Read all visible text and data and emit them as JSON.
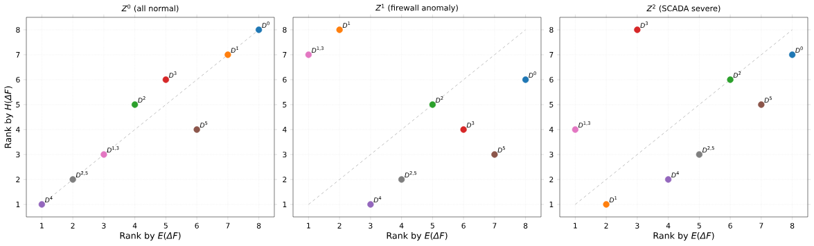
{
  "chart_data": [
    {
      "type": "scatter",
      "title": "*Z*$^{0}$ (all normal)",
      "xlabel": "Rank by *E*(*ΔF*)",
      "ylabel": "Rank by *H*(*ΔF*)",
      "xlim": [
        0.5,
        8.5
      ],
      "ylim": [
        0.5,
        8.5
      ],
      "xticks": [
        1,
        2,
        3,
        4,
        5,
        6,
        7,
        8
      ],
      "yticks": [
        1,
        2,
        3,
        4,
        5,
        6,
        7,
        8
      ],
      "grid": true,
      "series": [
        {
          "type": "line",
          "x": [
            1,
            8
          ],
          "values": [
            1,
            8
          ],
          "color": "#b0b0b0",
          "line_style": "dashed",
          "marker": "none"
        },
        {
          "marker": "circle",
          "x": [
            8,
            7,
            4,
            5,
            1,
            6,
            3,
            2
          ],
          "values": [
            8,
            7,
            5,
            6,
            1,
            4,
            3,
            2
          ],
          "colors": [
            "#1f77b4",
            "#ff7f0e",
            "#2ca02c",
            "#d62728",
            "#9467bd",
            "#8c564b",
            "#e377c2",
            "#7f7f7f"
          ]
        }
      ],
      "annotations": [
        {
          "text": "*D*$^{0}$",
          "x": 8,
          "y": 8
        },
        {
          "text": "*D*$^{1}$",
          "x": 7,
          "y": 7
        },
        {
          "text": "*D*$^{2}$",
          "x": 4,
          "y": 5
        },
        {
          "text": "*D*$^{3}$",
          "x": 5,
          "y": 6
        },
        {
          "text": "*D*$^{4}$",
          "x": 1,
          "y": 1
        },
        {
          "text": "*D*$^{5}$",
          "x": 6,
          "y": 4
        },
        {
          "text": "*D*$^{1,3}$",
          "x": 3,
          "y": 3
        },
        {
          "text": "*D*$^{2,5}$",
          "x": 2,
          "y": 2
        }
      ]
    },
    {
      "type": "scatter",
      "title": "*Z*$^{1}$ (firewall anomaly)",
      "xlabel": "Rank by *E*(*ΔF*)",
      "xlim": [
        0.5,
        8.5
      ],
      "ylim": [
        0.5,
        8.5
      ],
      "xticks": [
        1,
        2,
        3,
        4,
        5,
        6,
        7,
        8
      ],
      "yticks": [
        1,
        2,
        3,
        4,
        5,
        6,
        7,
        8
      ],
      "grid": true,
      "series": [
        {
          "type": "line",
          "x": [
            1,
            8
          ],
          "values": [
            1,
            8
          ],
          "color": "#b0b0b0",
          "line_style": "dashed",
          "marker": "none"
        },
        {
          "marker": "circle",
          "x": [
            8,
            2,
            5,
            6,
            3,
            7,
            1,
            4
          ],
          "values": [
            6,
            8,
            5,
            4,
            1,
            3,
            7,
            2
          ],
          "colors": [
            "#1f77b4",
            "#ff7f0e",
            "#2ca02c",
            "#d62728",
            "#9467bd",
            "#8c564b",
            "#e377c2",
            "#7f7f7f"
          ]
        }
      ],
      "annotations": [
        {
          "text": "*D*$^{0}$",
          "x": 8,
          "y": 6
        },
        {
          "text": "*D*$^{1}$",
          "x": 2,
          "y": 8
        },
        {
          "text": "*D*$^{2}$",
          "x": 5,
          "y": 5
        },
        {
          "text": "*D*$^{3}$",
          "x": 6,
          "y": 4
        },
        {
          "text": "*D*$^{4}$",
          "x": 3,
          "y": 1
        },
        {
          "text": "*D*$^{5}$",
          "x": 7,
          "y": 3
        },
        {
          "text": "*D*$^{1,3}$",
          "x": 1,
          "y": 7
        },
        {
          "text": "*D*$^{2,5}$",
          "x": 4,
          "y": 2
        }
      ]
    },
    {
      "type": "scatter",
      "title": "*Z*$^{2}$ (SCADA severe)",
      "xlabel": "Rank by *E*(*ΔF*)",
      "xlim": [
        0.5,
        8.5
      ],
      "ylim": [
        0.5,
        8.5
      ],
      "xticks": [
        1,
        2,
        3,
        4,
        5,
        6,
        7,
        8
      ],
      "yticks": [
        1,
        2,
        3,
        4,
        5,
        6,
        7,
        8
      ],
      "grid": true,
      "series": [
        {
          "type": "line",
          "x": [
            1,
            8
          ],
          "values": [
            1,
            8
          ],
          "color": "#b0b0b0",
          "line_style": "dashed",
          "marker": "none"
        },
        {
          "marker": "circle",
          "x": [
            8,
            2,
            6,
            3,
            4,
            7,
            1,
            5
          ],
          "values": [
            7,
            1,
            6,
            8,
            2,
            5,
            4,
            3
          ],
          "colors": [
            "#1f77b4",
            "#ff7f0e",
            "#2ca02c",
            "#d62728",
            "#9467bd",
            "#8c564b",
            "#e377c2",
            "#7f7f7f"
          ]
        }
      ],
      "annotations": [
        {
          "text": "*D*$^{0}$",
          "x": 8,
          "y": 7
        },
        {
          "text": "*D*$^{1}$",
          "x": 2,
          "y": 1
        },
        {
          "text": "*D*$^{2}$",
          "x": 6,
          "y": 6
        },
        {
          "text": "*D*$^{3}$",
          "x": 3,
          "y": 8
        },
        {
          "text": "*D*$^{4}$",
          "x": 4,
          "y": 2
        },
        {
          "text": "*D*$^{5}$",
          "x": 7,
          "y": 5
        },
        {
          "text": "*D*$^{1,3}$",
          "x": 1,
          "y": 4
        },
        {
          "text": "*D*$^{2,5}$",
          "x": 5,
          "y": 3
        }
      ]
    }
  ]
}
